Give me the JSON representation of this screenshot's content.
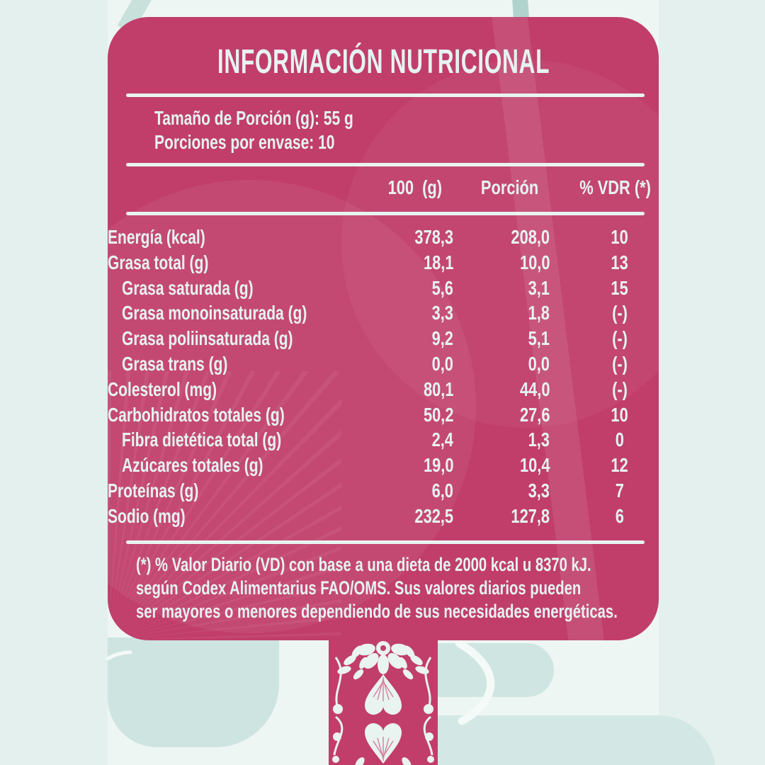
{
  "colors": {
    "card_pink": "#c13e6a",
    "text_mint": "#e6f3f1",
    "bg_light": "#eef6f4",
    "bg_mint": "#e4f0ee",
    "blob_teal": "#cde4e0",
    "pattern_white": "#e9f3f0"
  },
  "card": {
    "title": "INFORMACIÓN NUTRICIONAL",
    "serving_size": "Tamaño de Porción (g): 55 g",
    "servings_per_pack": "Porciones por envase: 10",
    "columns": [
      "100  (g)",
      "Porción",
      "% VDR (*)"
    ],
    "rows": [
      {
        "label": "Energía (kcal)",
        "indent": false,
        "per_100g": "378,3",
        "per_portion": "208,0",
        "pct_vdr": "10"
      },
      {
        "label": "Grasa total (g)",
        "indent": false,
        "per_100g": "18,1",
        "per_portion": "10,0",
        "pct_vdr": "13"
      },
      {
        "label": "Grasa saturada (g)",
        "indent": true,
        "per_100g": "5,6",
        "per_portion": "3,1",
        "pct_vdr": "15"
      },
      {
        "label": "Grasa monoinsaturada (g)",
        "indent": true,
        "per_100g": "3,3",
        "per_portion": "1,8",
        "pct_vdr": "(-)"
      },
      {
        "label": "Grasa poliinsaturada (g)",
        "indent": true,
        "per_100g": "9,2",
        "per_portion": "5,1",
        "pct_vdr": "(-)"
      },
      {
        "label": "Grasa trans (g)",
        "indent": true,
        "per_100g": "0,0",
        "per_portion": "0,0",
        "pct_vdr": "(-)"
      },
      {
        "label": "Colesterol (mg)",
        "indent": false,
        "per_100g": "80,1",
        "per_portion": "44,0",
        "pct_vdr": "(-)"
      },
      {
        "label": "Carbohidratos totales (g)",
        "indent": false,
        "per_100g": "50,2",
        "per_portion": "27,6",
        "pct_vdr": "10"
      },
      {
        "label": "Fibra dietética total (g)",
        "indent": true,
        "per_100g": "2,4",
        "per_portion": "1,3",
        "pct_vdr": "0"
      },
      {
        "label": "Azúcares totales (g)",
        "indent": true,
        "per_100g": "19,0",
        "per_portion": "10,4",
        "pct_vdr": "12"
      },
      {
        "label": "Proteínas (g)",
        "indent": false,
        "per_100g": "6,0",
        "per_portion": "3,3",
        "pct_vdr": "7"
      },
      {
        "label": "Sodio (mg)",
        "indent": false,
        "per_100g": "232,5",
        "per_portion": "127,8",
        "pct_vdr": "6"
      }
    ],
    "footnote_lines": [
      "(*) % Valor Diario (VD) con base a una dieta de 2000 kcal u 8370 kJ.",
      "según Codex Alimentarius FAO/OMS. Sus valores diarios pueden",
      "ser mayores o menores dependiendo de sus necesidades energéticas."
    ]
  },
  "decor": {
    "bottom_pattern": "folk-floral-strip"
  }
}
